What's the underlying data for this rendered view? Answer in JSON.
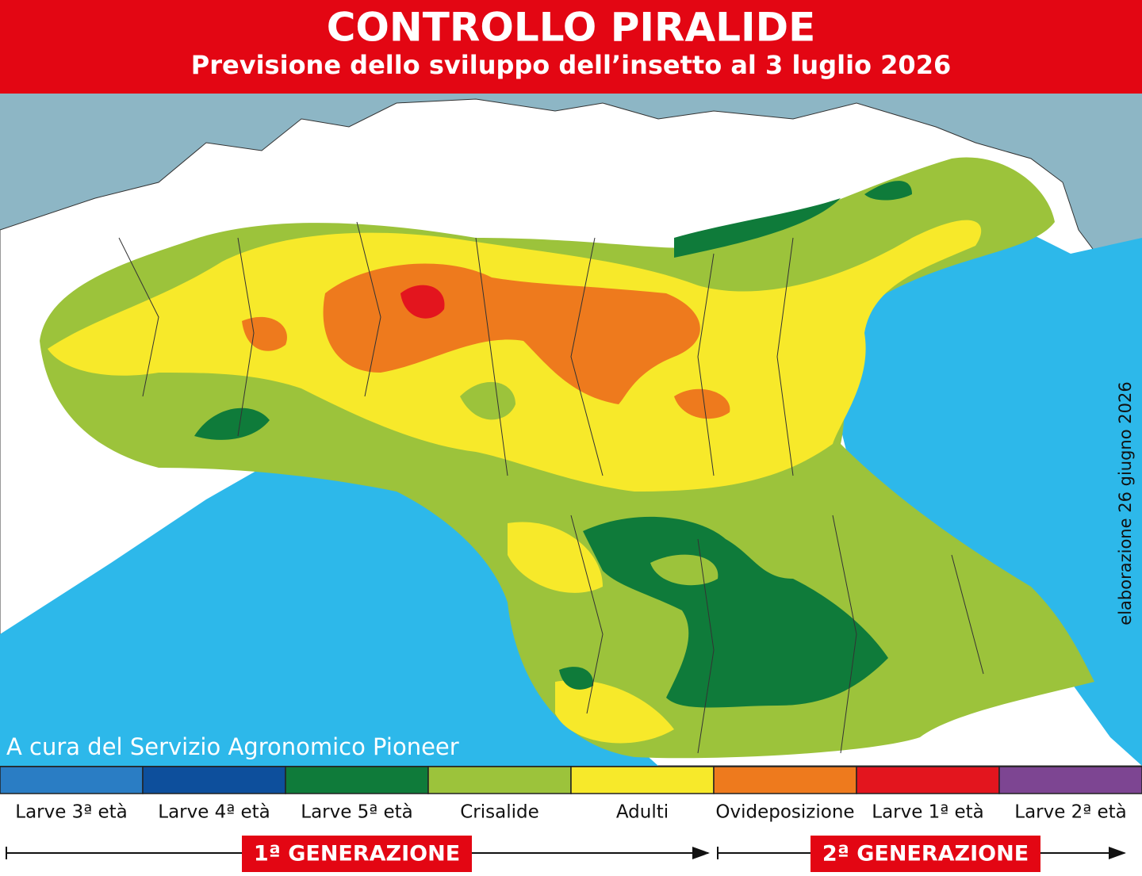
{
  "header": {
    "title": "CONTROLLO PIRALIDE",
    "subtitle": "Previsione dello sviluppo dell’insetto al 3 luglio 2026"
  },
  "map": {
    "credit": "A cura del Servizio Agronomico Pioneer",
    "date_note": "elaborazione 26 giugno 2026"
  },
  "legend": {
    "items": [
      {
        "label": "Larve 3ª età",
        "color": "#2a7dc4"
      },
      {
        "label": "Larve 4ª età",
        "color": "#0d4f9c"
      },
      {
        "label": "Larve 5ª età",
        "color": "#0f7b3a"
      },
      {
        "label": "Crisalide",
        "color": "#9cc33b"
      },
      {
        "label": "Adulti",
        "color": "#f7e92a"
      },
      {
        "label": "Ovideposizione",
        "color": "#ee7a1d"
      },
      {
        "label": "Larve 1ª età",
        "color": "#e3151e"
      },
      {
        "label": "Larve 2ª età",
        "color": "#7d4592"
      }
    ]
  },
  "generations": [
    {
      "label": "1ª GENERAZIONE"
    },
    {
      "label": "2ª GENERAZIONE"
    }
  ]
}
